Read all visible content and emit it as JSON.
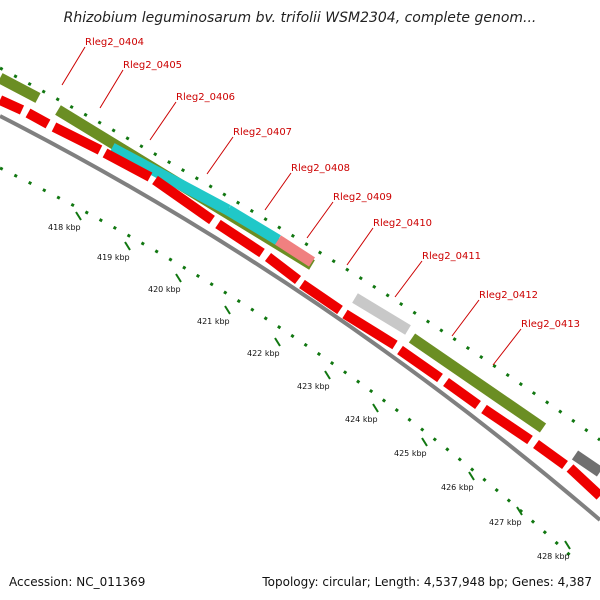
{
  "title": "Rhizobium leguminosarum bv. trifolii WSM2304, complete genom...",
  "accession_label": "Accession: NC_011369",
  "stats_label": "Topology: circular; Length: 4,537,948 bp; Genes: 4,387",
  "colors": {
    "cds": "#ee0000",
    "gene_olive": "#6b8e23",
    "gene_cyan": "#20c8c8",
    "gene_salmon": "#f08080",
    "gene_lightgray": "#c8c8c8",
    "gene_darkgray": "#707070",
    "backbone": "#808080",
    "tick": "#117711",
    "label": "#cc0000"
  },
  "gene_labels": [
    {
      "id": "g0404",
      "text": "Rleg2_0404"
    },
    {
      "id": "g0405",
      "text": "Rleg2_0405"
    },
    {
      "id": "g0406",
      "text": "Rleg2_0406"
    },
    {
      "id": "g0407",
      "text": "Rleg2_0407"
    },
    {
      "id": "g0408",
      "text": "Rleg2_0408"
    },
    {
      "id": "g0409",
      "text": "Rleg2_0409"
    },
    {
      "id": "g0410",
      "text": "Rleg2_0410"
    },
    {
      "id": "g0411",
      "text": "Rleg2_0411"
    },
    {
      "id": "g0412",
      "text": "Rleg2_0412"
    },
    {
      "id": "g0413",
      "text": "Rleg2_0413"
    }
  ],
  "kbp_labels": [
    "418 kbp",
    "419 kbp",
    "420 kbp",
    "421 kbp",
    "422 kbp",
    "423 kbp",
    "424 kbp",
    "425 kbp",
    "426 kbp",
    "427 kbp",
    "428 kbp"
  ]
}
